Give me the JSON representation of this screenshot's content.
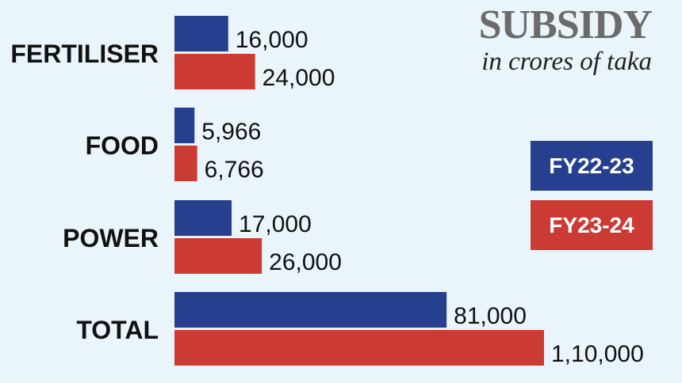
{
  "chart_data": {
    "type": "bar",
    "orientation": "horizontal",
    "title": "SUBSIDY",
    "subtitle": "in crores of taka",
    "categories": [
      "FERTILISER",
      "FOOD",
      "POWER",
      "TOTAL"
    ],
    "series": [
      {
        "name": "FY22-23",
        "color": "#263f8f",
        "values": [
          16000,
          5966,
          17000,
          81000
        ],
        "labels": [
          "16,000",
          "5,966",
          "17,000",
          "81,000"
        ]
      },
      {
        "name": "FY23-24",
        "color": "#cc3b33",
        "values": [
          24000,
          6766,
          26000,
          110000
        ],
        "labels": [
          "24,000",
          "6,766",
          "26,000",
          "1,10,000"
        ]
      }
    ],
    "legend_position": "right",
    "grid": false,
    "xlim": [
      0,
      110000
    ]
  }
}
